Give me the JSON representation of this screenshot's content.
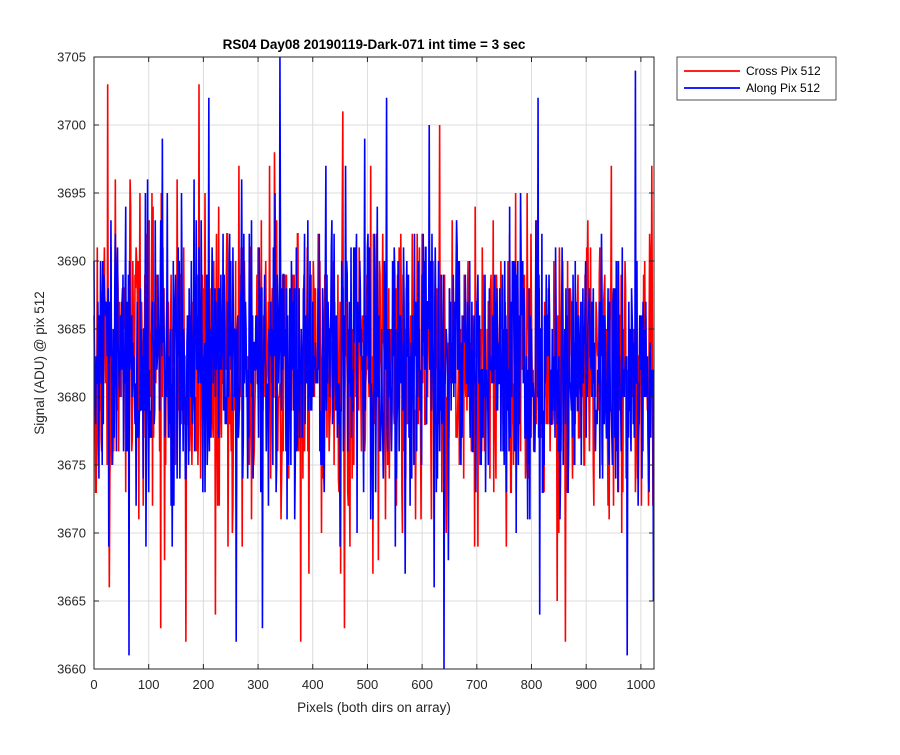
{
  "chart_data": {
    "type": "line",
    "title": "RS04 Day08 20190119-Dark-071 int time = 3 sec",
    "xlabel": "Pixels (both dirs on array)",
    "ylabel": "Signal (ADU) @ pix 512",
    "xlim": [
      0,
      1024
    ],
    "ylim": [
      3660,
      3705
    ],
    "xticks": [
      0,
      100,
      200,
      300,
      400,
      500,
      600,
      700,
      800,
      900,
      1000
    ],
    "yticks": [
      3660,
      3665,
      3670,
      3675,
      3680,
      3685,
      3690,
      3695,
      3700,
      3705
    ],
    "grid": true,
    "legend_location": "outside top-right",
    "noise_model": {
      "samples_per_series": 1024,
      "mean": 3682.5,
      "std": 5.2
    },
    "series": [
      {
        "name": "Cross Pix 512",
        "color": "#ff0000",
        "mean": 3682.5,
        "min": 3662,
        "max": 3703,
        "seed": 17,
        "features": [
          {
            "x": 3,
            "y": 3673
          },
          {
            "x": 10,
            "y": 3686
          },
          {
            "x": 25,
            "y": 3703
          },
          {
            "x": 28,
            "y": 3666
          },
          {
            "x": 122,
            "y": 3663
          },
          {
            "x": 168,
            "y": 3662
          },
          {
            "x": 192,
            "y": 3703
          },
          {
            "x": 222,
            "y": 3664
          },
          {
            "x": 265,
            "y": 3697
          },
          {
            "x": 330,
            "y": 3698
          },
          {
            "x": 378,
            "y": 3662
          },
          {
            "x": 455,
            "y": 3701
          },
          {
            "x": 458,
            "y": 3663
          },
          {
            "x": 520,
            "y": 3668
          },
          {
            "x": 632,
            "y": 3700
          },
          {
            "x": 847,
            "y": 3665
          },
          {
            "x": 862,
            "y": 3662
          },
          {
            "x": 1020,
            "y": 3697
          }
        ]
      },
      {
        "name": "Along Pix 512",
        "color": "#0000ff",
        "mean": 3682.5,
        "min": 3660,
        "max": 3705,
        "seed": 29,
        "features": [
          {
            "x": 3,
            "y": 3678
          },
          {
            "x": 12,
            "y": 3690
          },
          {
            "x": 64,
            "y": 3661
          },
          {
            "x": 125,
            "y": 3699
          },
          {
            "x": 210,
            "y": 3702
          },
          {
            "x": 260,
            "y": 3662
          },
          {
            "x": 308,
            "y": 3663
          },
          {
            "x": 340,
            "y": 3705
          },
          {
            "x": 385,
            "y": 3692
          },
          {
            "x": 460,
            "y": 3697
          },
          {
            "x": 535,
            "y": 3702
          },
          {
            "x": 622,
            "y": 3666
          },
          {
            "x": 640,
            "y": 3660
          },
          {
            "x": 812,
            "y": 3702
          },
          {
            "x": 815,
            "y": 3664
          },
          {
            "x": 975,
            "y": 3661
          },
          {
            "x": 990,
            "y": 3704
          },
          {
            "x": 1023,
            "y": 3665
          }
        ]
      }
    ]
  }
}
